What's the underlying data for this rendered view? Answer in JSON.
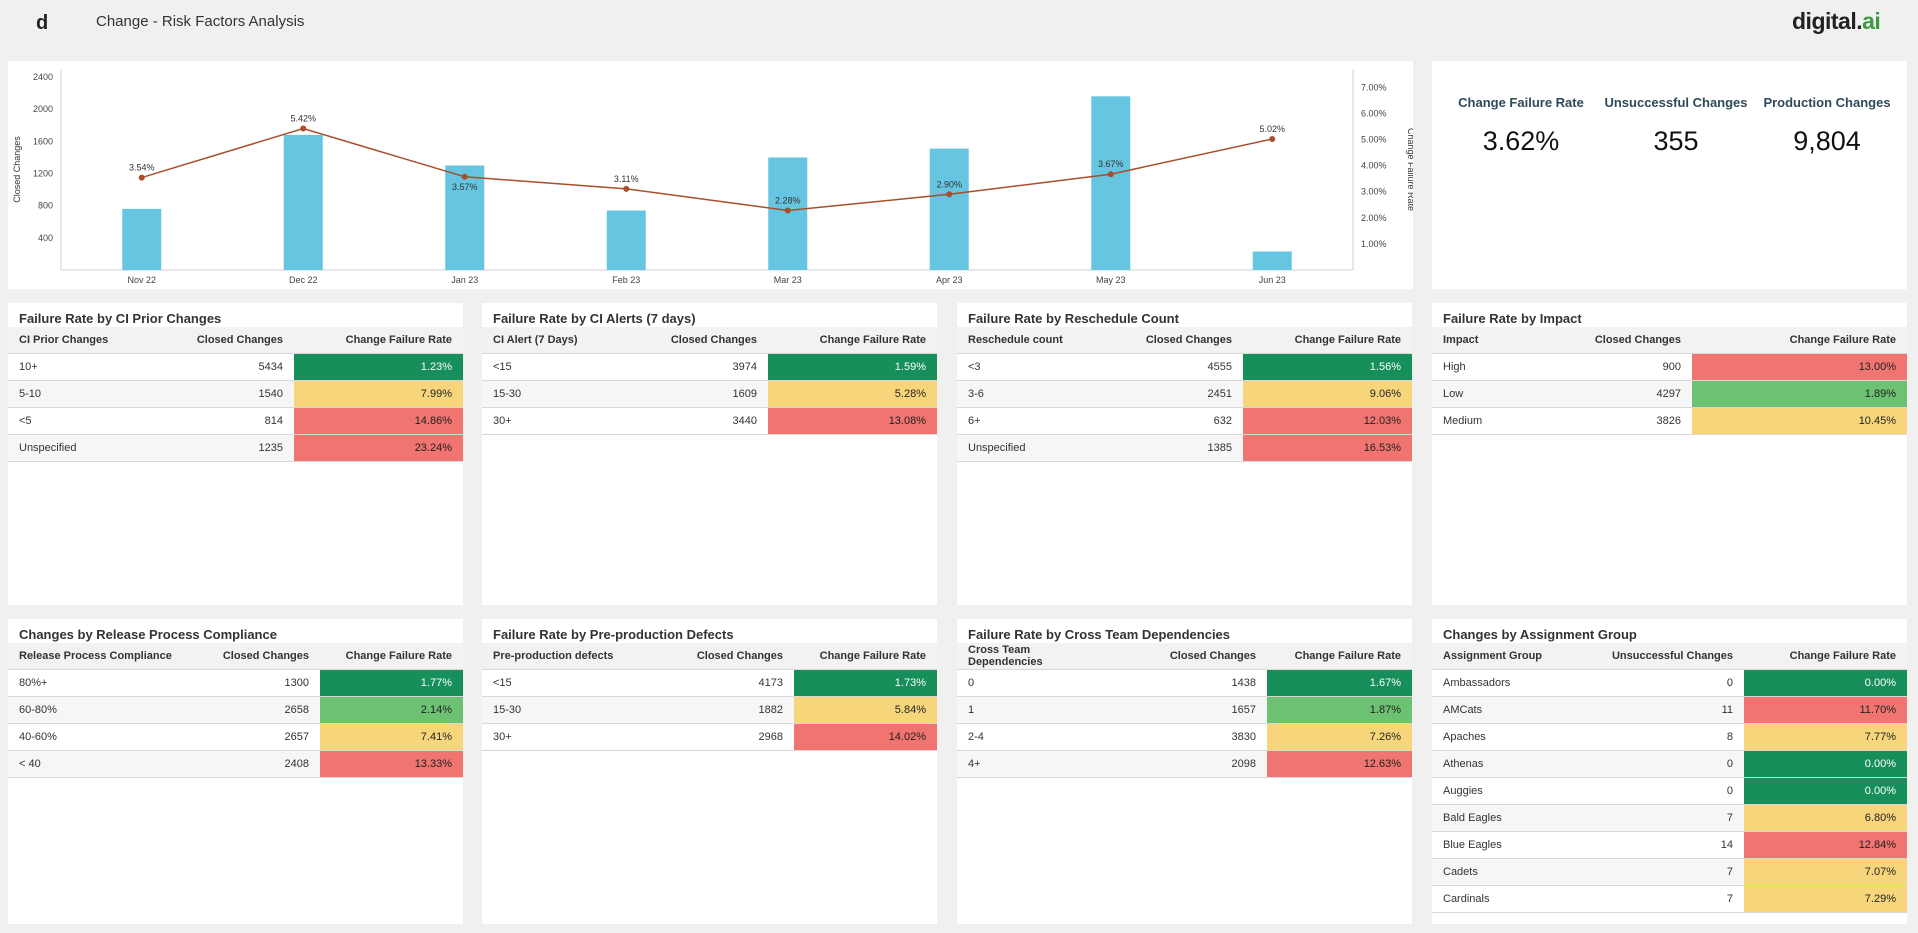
{
  "header": {
    "title": "Change - Risk Factors Analysis",
    "logo_letter": "d",
    "brand_main": "digital.",
    "brand_ai": "ai"
  },
  "colors": {
    "bar": "#66c5e0",
    "line": "#a84e2b",
    "rate_dark_green": "#178f5b",
    "rate_light_green": "#6dc172",
    "rate_yellow": "#f7d67b",
    "rate_red": "#f07470"
  },
  "chart_data": {
    "type": "bar",
    "categories": [
      "Nov 22",
      "Dec 22",
      "Jan 23",
      "Feb 23",
      "Mar 23",
      "Apr 23",
      "May 23",
      "Jun 23"
    ],
    "series": [
      {
        "name": "Closed Changes",
        "type": "bar",
        "axis": "left",
        "values": [
          760,
          1680,
          1300,
          740,
          1400,
          1510,
          2160,
          230
        ]
      },
      {
        "name": "Change Failure Rate",
        "type": "line",
        "axis": "right",
        "values": [
          3.54,
          5.42,
          3.57,
          3.11,
          2.28,
          2.9,
          3.67,
          5.02
        ]
      }
    ],
    "data_labels": [
      "3.54%",
      "5.42%",
      "3.57%",
      "3.11%",
      "2.28%",
      "2.90%",
      "3.67%",
      "5.02%"
    ],
    "ylabel": "Closed Changes",
    "y2label": "Change Failure Rate",
    "yticks": [
      "400",
      "800",
      "1200",
      "1600",
      "2000",
      "2400"
    ],
    "y2ticks": [
      "1.00%",
      "2.00%",
      "3.00%",
      "4.00%",
      "5.00%",
      "6.00%",
      "7.00%"
    ],
    "ylim": [
      0,
      2500
    ],
    "y2lim": [
      0,
      7.7
    ]
  },
  "kpis": [
    {
      "label": "Change Failure Rate",
      "value": "3.62%"
    },
    {
      "label": "Unsuccessful Changes",
      "value": "355"
    },
    {
      "label": "Production Changes",
      "value": "9,804"
    }
  ],
  "tables": [
    {
      "title": "Failure Rate by CI Prior Changes",
      "headers": [
        "CI Prior Changes",
        "Closed Changes",
        "Change Failure Rate"
      ],
      "rows": [
        [
          "10+",
          "5434",
          "1.23%",
          "g1"
        ],
        [
          "5-10",
          "1540",
          "7.99%",
          "y"
        ],
        [
          "<5",
          "814",
          "14.86%",
          "r"
        ],
        [
          "Unspecified",
          "1235",
          "23.24%",
          "r"
        ]
      ]
    },
    {
      "title": "Failure Rate by CI Alerts (7 days)",
      "headers": [
        "CI Alert (7 Days)",
        "Closed Changes",
        "Change Failure Rate"
      ],
      "rows": [
        [
          "<15",
          "3974",
          "1.59%",
          "g1"
        ],
        [
          "15-30",
          "1609",
          "5.28%",
          "y"
        ],
        [
          "30+",
          "3440",
          "13.08%",
          "r"
        ]
      ]
    },
    {
      "title": "Failure Rate by Reschedule Count",
      "headers": [
        "Reschedule count",
        "Closed Changes",
        "Change Failure Rate"
      ],
      "rows": [
        [
          "<3",
          "4555",
          "1.56%",
          "g1"
        ],
        [
          "3-6",
          "2451",
          "9.06%",
          "y"
        ],
        [
          "6+",
          "632",
          "12.03%",
          "r"
        ],
        [
          "Unspecified",
          "1385",
          "16.53%",
          "r"
        ]
      ]
    },
    {
      "title": "Failure Rate by Impact",
      "headers": [
        "Impact",
        "Closed Changes",
        "Change Failure Rate"
      ],
      "rows": [
        [
          "High",
          "900",
          "13.00%",
          "r"
        ],
        [
          "Low",
          "4297",
          "1.89%",
          "g2"
        ],
        [
          "Medium",
          "3826",
          "10.45%",
          "y"
        ]
      ]
    },
    {
      "title": "Changes by Release Process Compliance",
      "headers": [
        "Release Process Compliance",
        "Closed Changes",
        "Change Failure Rate"
      ],
      "rows": [
        [
          "80%+",
          "1300",
          "1.77%",
          "g1"
        ],
        [
          "60-80%",
          "2658",
          "2.14%",
          "g2"
        ],
        [
          "40-60%",
          "2657",
          "7.41%",
          "y"
        ],
        [
          "< 40",
          "2408",
          "13.33%",
          "r"
        ]
      ]
    },
    {
      "title": "Failure Rate by Pre-production Defects",
      "headers": [
        "Pre-production defects",
        "Closed Changes",
        "Change Failure Rate"
      ],
      "rows": [
        [
          "<15",
          "4173",
          "1.73%",
          "g1"
        ],
        [
          "15-30",
          "1882",
          "5.84%",
          "y"
        ],
        [
          "30+",
          "2968",
          "14.02%",
          "r"
        ]
      ]
    },
    {
      "title": "Failure Rate by Cross Team Dependencies",
      "headers": [
        "Cross Team Dependencies",
        "Closed Changes",
        "Change Failure Rate"
      ],
      "rows": [
        [
          "0",
          "1438",
          "1.67%",
          "g1"
        ],
        [
          "1",
          "1657",
          "1.87%",
          "g2"
        ],
        [
          "2-4",
          "3830",
          "7.26%",
          "y"
        ],
        [
          "4+",
          "2098",
          "12.63%",
          "r"
        ]
      ]
    },
    {
      "title": "Changes by Assignment Group",
      "headers": [
        "Assignment Group",
        "Unsuccessful Changes",
        "Change Failure Rate"
      ],
      "rows": [
        [
          "Ambassadors",
          "0",
          "0.00%",
          "g1"
        ],
        [
          "AMCats",
          "11",
          "11.70%",
          "r"
        ],
        [
          "Apaches",
          "8",
          "7.77%",
          "y"
        ],
        [
          "Athenas",
          "0",
          "0.00%",
          "g1"
        ],
        [
          "Auggies",
          "0",
          "0.00%",
          "g1"
        ],
        [
          "Bald Eagles",
          "7",
          "6.80%",
          "y"
        ],
        [
          "Blue Eagles",
          "14",
          "12.84%",
          "r"
        ],
        [
          "Cadets",
          "7",
          "7.07%",
          "y"
        ],
        [
          "Cardinals",
          "7",
          "7.29%",
          "y"
        ]
      ]
    }
  ]
}
